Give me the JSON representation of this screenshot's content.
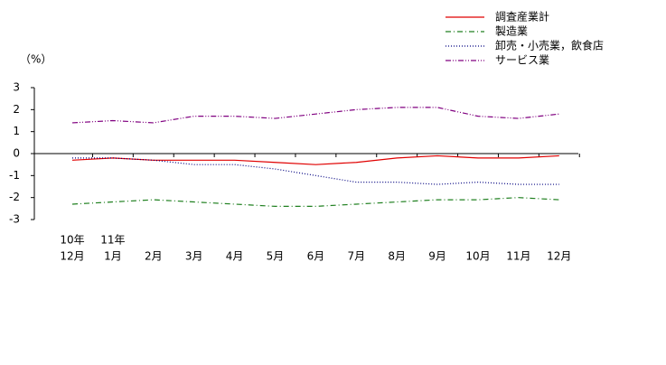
{
  "chart_data": {
    "type": "line",
    "y_label": "（%）",
    "categories": [
      "12月",
      "1月",
      "2月",
      "3月",
      "4月",
      "5月",
      "6月",
      "7月",
      "8月",
      "9月",
      "10月",
      "11月",
      "12月"
    ],
    "year_labels": [
      "10年",
      "11年",
      null,
      null,
      null,
      null,
      null,
      null,
      null,
      null,
      null,
      null,
      null
    ],
    "series": [
      {
        "name": "調査産業計",
        "color": "#e00000",
        "dash": "none",
        "values": [
          -0.3,
          -0.2,
          -0.3,
          -0.3,
          -0.3,
          -0.4,
          -0.5,
          -0.4,
          -0.2,
          -0.1,
          -0.2,
          -0.2,
          -0.1
        ]
      },
      {
        "name": "製造業",
        "color": "#208020",
        "dash": "6 3 1 3",
        "values": [
          -2.3,
          -2.2,
          -2.1,
          -2.2,
          -2.3,
          -2.4,
          -2.4,
          -2.3,
          -2.2,
          -2.1,
          -2.1,
          -2.0,
          -2.1
        ]
      },
      {
        "name": "卸売・小売業，飲食店",
        "color": "#000080",
        "dash": "1 2",
        "values": [
          -0.2,
          -0.2,
          -0.3,
          -0.5,
          -0.5,
          -0.7,
          -1.0,
          -1.3,
          -1.3,
          -1.4,
          -1.3,
          -1.4,
          -1.4
        ]
      },
      {
        "name": "サービス業",
        "color": "#800080",
        "dash": "6 2 1 2 1 2",
        "values": [
          1.4,
          1.5,
          1.4,
          1.7,
          1.7,
          1.6,
          1.8,
          2.0,
          2.1,
          2.1,
          1.7,
          1.6,
          1.8
        ]
      }
    ],
    "ylim": [
      -3,
      3
    ],
    "yticks": [
      -3,
      -2,
      -1,
      0,
      1,
      2,
      3
    ],
    "grid": false,
    "legend": "top-right"
  }
}
